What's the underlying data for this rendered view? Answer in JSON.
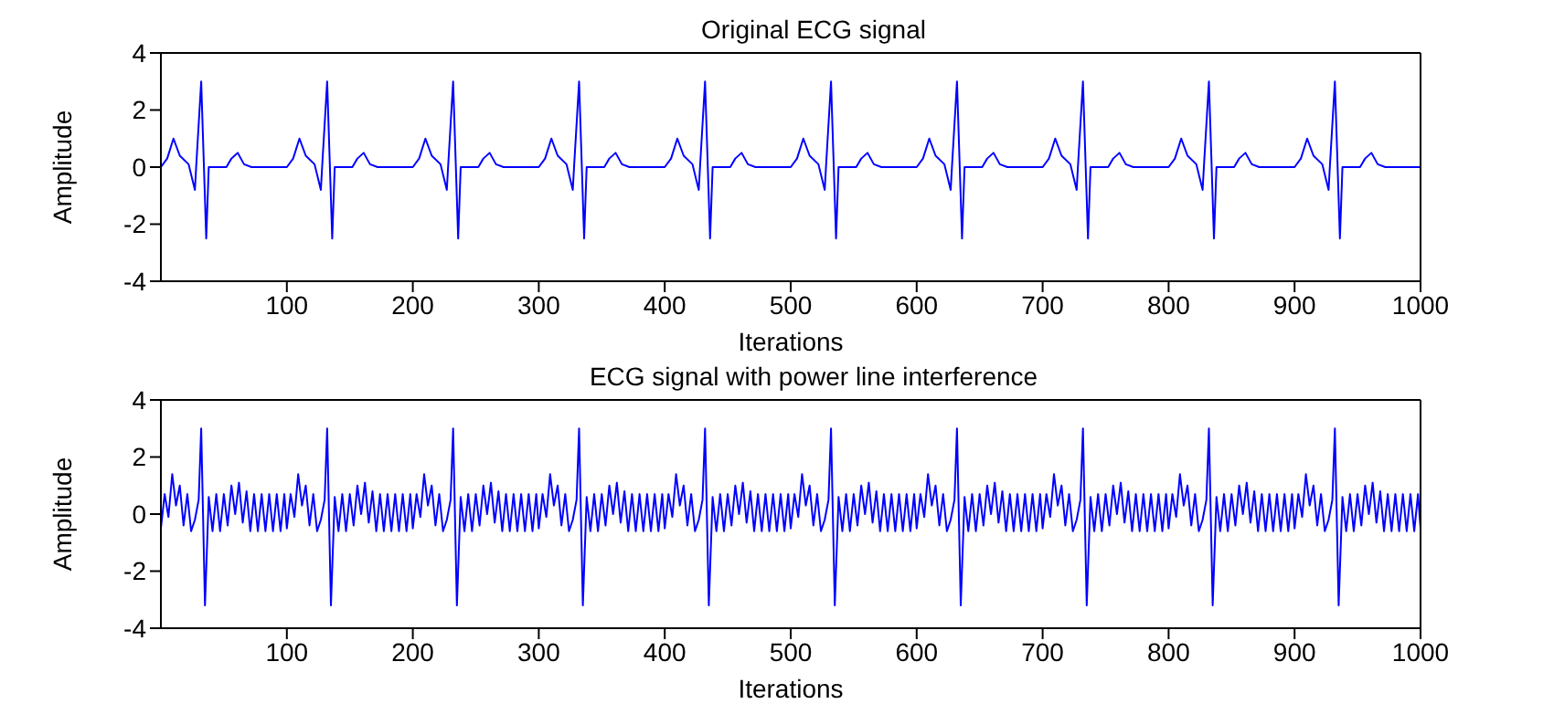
{
  "chart_data": [
    {
      "type": "line",
      "title": "Original ECG signal",
      "xlabel": "Iterations",
      "ylabel": "Amplitude",
      "color": "#0000ff",
      "xlim": [
        0,
        1000
      ],
      "xticks": [
        100,
        200,
        300,
        400,
        500,
        600,
        700,
        800,
        900,
        1000
      ],
      "ylim": [
        -4,
        4
      ],
      "yticks": [
        -4,
        -2,
        0,
        2,
        4
      ],
      "x": [
        0,
        5,
        10,
        15,
        22,
        27,
        28,
        32,
        36,
        38,
        52,
        56,
        61,
        66,
        72,
        100,
        105,
        110,
        115,
        122,
        127,
        128,
        132,
        136,
        138,
        152,
        156,
        161,
        166,
        172,
        200,
        205,
        210,
        215,
        222,
        227,
        228,
        232,
        236,
        238,
        252,
        256,
        261,
        266,
        272,
        300,
        305,
        310,
        315,
        322,
        327,
        328,
        332,
        336,
        338,
        352,
        356,
        361,
        366,
        372,
        400,
        405,
        410,
        415,
        422,
        427,
        428,
        432,
        436,
        438,
        452,
        456,
        461,
        466,
        472,
        500,
        505,
        510,
        515,
        522,
        527,
        528,
        532,
        536,
        538,
        552,
        556,
        561,
        566,
        572,
        600,
        605,
        610,
        615,
        622,
        627,
        628,
        632,
        636,
        638,
        652,
        656,
        661,
        666,
        672,
        700,
        705,
        710,
        715,
        722,
        727,
        728,
        732,
        736,
        738,
        752,
        756,
        761,
        766,
        772,
        800,
        805,
        810,
        815,
        822,
        827,
        828,
        832,
        836,
        838,
        852,
        856,
        861,
        866,
        872,
        900,
        905,
        910,
        915,
        922,
        927,
        928,
        932,
        936,
        938,
        952,
        956,
        961,
        966,
        972,
        1000
      ],
      "values": [
        0,
        0.3,
        1,
        0.4,
        0.1,
        -0.8,
        0,
        3,
        -2.5,
        0,
        0,
        0.3,
        0.5,
        0.1,
        0,
        0,
        0.3,
        1,
        0.4,
        0.1,
        -0.8,
        0,
        3,
        -2.5,
        0,
        0,
        0.3,
        0.5,
        0.1,
        0,
        0,
        0.3,
        1,
        0.4,
        0.1,
        -0.8,
        0,
        3,
        -2.5,
        0,
        0,
        0.3,
        0.5,
        0.1,
        0,
        0,
        0.3,
        1,
        0.4,
        0.1,
        -0.8,
        0,
        3,
        -2.5,
        0,
        0,
        0.3,
        0.5,
        0.1,
        0,
        0,
        0.3,
        1,
        0.4,
        0.1,
        -0.8,
        0,
        3,
        -2.5,
        0,
        0,
        0.3,
        0.5,
        0.1,
        0,
        0,
        0.3,
        1,
        0.4,
        0.1,
        -0.8,
        0,
        3,
        -2.5,
        0,
        0,
        0.3,
        0.5,
        0.1,
        0,
        0,
        0.3,
        1,
        0.4,
        0.1,
        -0.8,
        0,
        3,
        -2.5,
        0,
        0,
        0.3,
        0.5,
        0.1,
        0,
        0,
        0.3,
        1,
        0.4,
        0.1,
        -0.8,
        0,
        3,
        -2.5,
        0,
        0,
        0.3,
        0.5,
        0.1,
        0,
        0,
        0.3,
        1,
        0.4,
        0.1,
        -0.8,
        0,
        3,
        -2.5,
        0,
        0,
        0.3,
        0.5,
        0.1,
        0,
        0,
        0.3,
        1,
        0.4,
        0.1,
        -0.8,
        0,
        3,
        -2.5,
        0,
        0,
        0.3,
        0.5,
        0.1,
        0,
        0
      ]
    },
    {
      "type": "line",
      "title": "ECG signal with power line interference",
      "xlabel": "Iterations",
      "ylabel": "Amplitude",
      "color": "#0000ff",
      "xlim": [
        0,
        1000
      ],
      "xticks": [
        100,
        200,
        300,
        400,
        500,
        600,
        700,
        800,
        900,
        1000
      ],
      "ylim": [
        -4,
        4
      ],
      "yticks": [
        -4,
        -2,
        0,
        2,
        4
      ],
      "x": [
        0,
        3,
        6,
        9,
        12,
        15,
        18,
        21,
        24,
        27,
        30,
        32,
        35,
        38,
        41,
        44,
        47,
        50,
        53,
        56,
        59,
        62,
        65,
        68,
        71,
        74,
        77,
        80,
        83,
        86,
        89,
        92,
        95,
        98,
        100,
        103,
        106,
        109,
        112,
        115,
        118,
        121,
        124,
        127,
        130,
        132,
        135,
        138,
        141,
        144,
        147,
        150,
        153,
        156,
        159,
        162,
        165,
        168,
        171,
        174,
        177,
        180,
        183,
        186,
        189,
        192,
        195,
        198,
        200,
        203,
        206,
        209,
        212,
        215,
        218,
        221,
        224,
        227,
        230,
        232,
        235,
        238,
        241,
        244,
        247,
        250,
        253,
        256,
        259,
        262,
        265,
        268,
        271,
        274,
        277,
        280,
        283,
        286,
        289,
        292,
        295,
        298,
        300,
        303,
        306,
        309,
        312,
        315,
        318,
        321,
        324,
        327,
        330,
        332,
        335,
        338,
        341,
        344,
        347,
        350,
        353,
        356,
        359,
        362,
        365,
        368,
        371,
        374,
        377,
        380,
        383,
        386,
        389,
        392,
        395,
        398,
        400,
        403,
        406,
        409,
        412,
        415,
        418,
        421,
        424,
        427,
        430,
        432,
        435,
        438,
        441,
        444,
        447,
        450,
        453,
        456,
        459,
        462,
        465,
        468,
        471,
        474,
        477,
        480,
        483,
        486,
        489,
        492,
        495,
        498,
        500,
        503,
        506,
        509,
        512,
        515,
        518,
        521,
        524,
        527,
        530,
        532,
        535,
        538,
        541,
        544,
        547,
        550,
        553,
        556,
        559,
        562,
        565,
        568,
        571,
        574,
        577,
        580,
        583,
        586,
        589,
        592,
        595,
        598,
        600,
        603,
        606,
        609,
        612,
        615,
        618,
        621,
        624,
        627,
        630,
        632,
        635,
        638,
        641,
        644,
        647,
        650,
        653,
        656,
        659,
        662,
        665,
        668,
        671,
        674,
        677,
        680,
        683,
        686,
        689,
        692,
        695,
        698,
        700,
        703,
        706,
        709,
        712,
        715,
        718,
        721,
        724,
        727,
        730,
        732,
        735,
        738,
        741,
        744,
        747,
        750,
        753,
        756,
        759,
        762,
        765,
        768,
        771,
        774,
        777,
        780,
        783,
        786,
        789,
        792,
        795,
        798,
        800,
        803,
        806,
        809,
        812,
        815,
        818,
        821,
        824,
        827,
        830,
        832,
        835,
        838,
        841,
        844,
        847,
        850,
        853,
        856,
        859,
        862,
        865,
        868,
        871,
        874,
        877,
        880,
        883,
        886,
        889,
        892,
        895,
        898,
        900,
        903,
        906,
        909,
        912,
        915,
        918,
        921,
        924,
        927,
        930,
        932,
        935,
        938,
        941,
        944,
        947,
        950,
        953,
        956,
        959,
        962,
        965,
        968,
        971,
        974,
        977,
        980,
        983,
        986,
        989,
        992,
        995,
        998,
        1000
      ],
      "values": [
        -0.5,
        0.7,
        -0.1,
        1.4,
        0.3,
        1.0,
        -0.4,
        0.7,
        -0.6,
        -0.2,
        0.5,
        3.0,
        -3.2,
        0.6,
        -0.6,
        0.7,
        -0.6,
        0.7,
        -0.4,
        1.0,
        0,
        1.1,
        -0.3,
        0.8,
        -0.6,
        0.7,
        -0.6,
        0.7,
        -0.6,
        0.7,
        -0.6,
        0.7,
        -0.6,
        0.7,
        -0.5,
        0.7,
        -0.1,
        1.4,
        0.3,
        1.0,
        -0.4,
        0.7,
        -0.6,
        -0.2,
        0.5,
        3.0,
        -3.2,
        0.6,
        -0.6,
        0.7,
        -0.6,
        0.7,
        -0.4,
        1.0,
        0,
        1.1,
        -0.3,
        0.8,
        -0.6,
        0.7,
        -0.6,
        0.7,
        -0.6,
        0.7,
        -0.6,
        0.7,
        -0.6,
        0.7,
        -0.5,
        0.7,
        -0.1,
        1.4,
        0.3,
        1.0,
        -0.4,
        0.7,
        -0.6,
        -0.2,
        0.5,
        3.0,
        -3.2,
        0.6,
        -0.6,
        0.7,
        -0.6,
        0.7,
        -0.4,
        1.0,
        0,
        1.1,
        -0.3,
        0.8,
        -0.6,
        0.7,
        -0.6,
        0.7,
        -0.6,
        0.7,
        -0.6,
        0.7,
        -0.6,
        0.7,
        -0.5,
        0.7,
        -0.1,
        1.4,
        0.3,
        1.0,
        -0.4,
        0.7,
        -0.6,
        -0.2,
        0.5,
        3.0,
        -3.2,
        0.6,
        -0.6,
        0.7,
        -0.6,
        0.7,
        -0.4,
        1.0,
        0,
        1.1,
        -0.3,
        0.8,
        -0.6,
        0.7,
        -0.6,
        0.7,
        -0.6,
        0.7,
        -0.6,
        0.7,
        -0.6,
        0.7,
        -0.5,
        0.7,
        -0.1,
        1.4,
        0.3,
        1.0,
        -0.4,
        0.7,
        -0.6,
        -0.2,
        0.5,
        3.0,
        -3.2,
        0.6,
        -0.6,
        0.7,
        -0.6,
        0.7,
        -0.4,
        1.0,
        0,
        1.1,
        -0.3,
        0.8,
        -0.6,
        0.7,
        -0.6,
        0.7,
        -0.6,
        0.7,
        -0.6,
        0.7,
        -0.6,
        0.7,
        -0.5,
        0.7,
        -0.1,
        1.4,
        0.3,
        1.0,
        -0.4,
        0.7,
        -0.6,
        -0.2,
        0.5,
        3.0,
        -3.2,
        0.6,
        -0.6,
        0.7,
        -0.6,
        0.7,
        -0.4,
        1.0,
        0,
        1.1,
        -0.3,
        0.8,
        -0.6,
        0.7,
        -0.6,
        0.7,
        -0.6,
        0.7,
        -0.6,
        0.7,
        -0.6,
        0.7,
        -0.5,
        0.7,
        -0.1,
        1.4,
        0.3,
        1.0,
        -0.4,
        0.7,
        -0.6,
        -0.2,
        0.5,
        3.0,
        -3.2,
        0.6,
        -0.6,
        0.7,
        -0.6,
        0.7,
        -0.4,
        1.0,
        0,
        1.1,
        -0.3,
        0.8,
        -0.6,
        0.7,
        -0.6,
        0.7,
        -0.6,
        0.7,
        -0.6,
        0.7,
        -0.6,
        0.7,
        -0.5,
        0.7,
        -0.1,
        1.4,
        0.3,
        1.0,
        -0.4,
        0.7,
        -0.6,
        -0.2,
        0.5,
        3.0,
        -3.2,
        0.6,
        -0.6,
        0.7,
        -0.6,
        0.7,
        -0.4,
        1.0,
        0,
        1.1,
        -0.3,
        0.8,
        -0.6,
        0.7,
        -0.6,
        0.7,
        -0.6,
        0.7,
        -0.6,
        0.7,
        -0.6,
        0.7,
        -0.5,
        0.7,
        -0.1,
        1.4,
        0.3,
        1.0,
        -0.4,
        0.7,
        -0.6,
        -0.2,
        0.5,
        3.0,
        -3.2,
        0.6,
        -0.6,
        0.7,
        -0.6,
        0.7,
        -0.4,
        1.0,
        0,
        1.1,
        -0.3,
        0.8,
        -0.6,
        0.7,
        -0.6,
        0.7,
        -0.6,
        0.7,
        -0.6,
        0.7,
        -0.6,
        0.7,
        -0.5,
        0.7,
        -0.1,
        1.4,
        0.3,
        1.0,
        -0.4,
        0.7,
        -0.6,
        -0.2,
        0.5,
        3.0,
        -3.2,
        0.6,
        -0.6,
        0.7,
        -0.6,
        0.7,
        -0.4,
        1.0,
        0,
        1.1,
        -0.3,
        0.8,
        -0.6,
        0.7,
        -0.6,
        0.7,
        -0.6,
        0.7,
        -0.6,
        0.7,
        -0.6,
        0.7,
        -0.5
      ]
    }
  ]
}
